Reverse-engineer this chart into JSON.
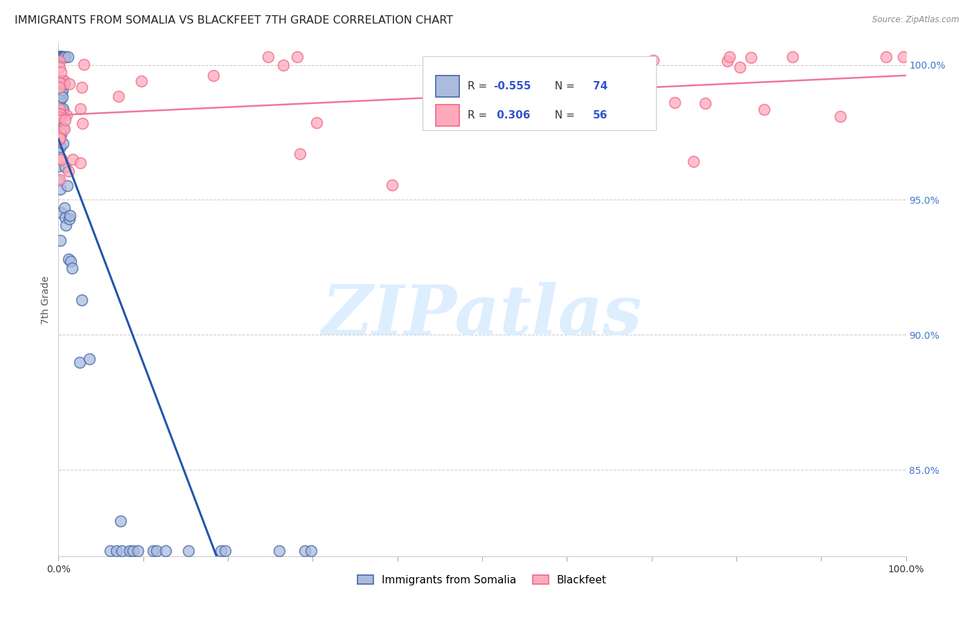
{
  "title": "IMMIGRANTS FROM SOMALIA VS BLACKFEET 7TH GRADE CORRELATION CHART",
  "source": "Source: ZipAtlas.com",
  "ylabel": "7th Grade",
  "xlim": [
    0.0,
    1.0
  ],
  "ylim": [
    0.818,
    1.008
  ],
  "xtick_positions": [
    0.0,
    0.1,
    0.2,
    0.3,
    0.4,
    0.5,
    0.6,
    0.7,
    0.8,
    0.9,
    1.0
  ],
  "xtick_labels": [
    "0.0%",
    "",
    "",
    "",
    "",
    "",
    "",
    "",
    "",
    "",
    "100.0%"
  ],
  "ytick_positions": [
    0.85,
    0.9,
    0.95,
    1.0
  ],
  "ytick_labels": [
    "85.0%",
    "90.0%",
    "95.0%",
    "100.0%"
  ],
  "legend_labels": [
    "Immigrants from Somalia",
    "Blackfeet"
  ],
  "color_blue_fill": "#aabbdd",
  "color_blue_edge": "#4466aa",
  "color_pink_fill": "#ffaabb",
  "color_pink_edge": "#ee6688",
  "color_line_blue": "#2255aa",
  "color_line_pink": "#ee7799",
  "watermark_text": "ZIPatlas",
  "watermark_color": "#ddeeff",
  "title_fontsize": 11.5,
  "tick_fontsize": 10,
  "ylabel_fontsize": 10,
  "legend_r_blue": "-0.555",
  "legend_n_blue": "74",
  "legend_r_pink": "0.306",
  "legend_n_pink": "56"
}
